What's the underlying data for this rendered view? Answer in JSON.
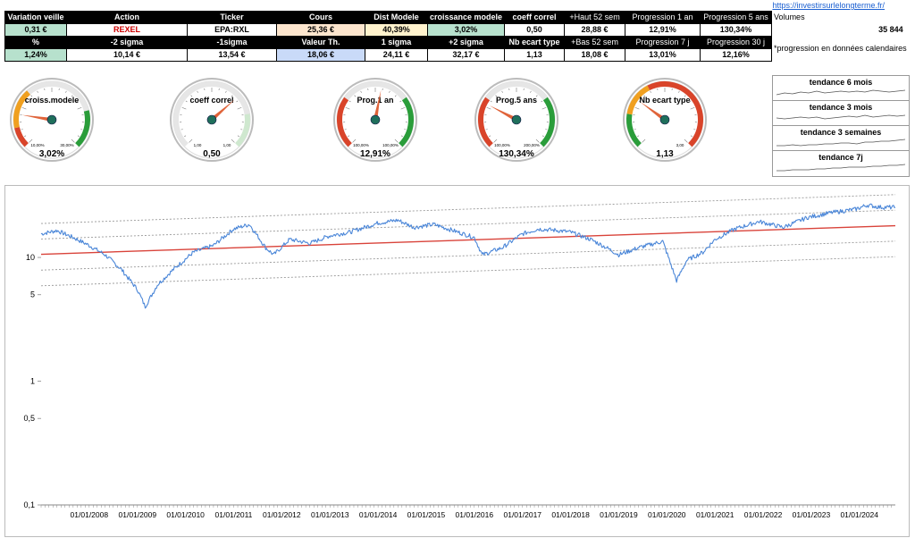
{
  "link": "https://investirsurlelongterme.fr/",
  "table": {
    "row1_headers": [
      {
        "name": "variation-veille-header",
        "text": "Variation veille",
        "cls": "h"
      },
      {
        "name": "action-header",
        "text": "Action",
        "cls": "h"
      },
      {
        "name": "ticker-header",
        "text": "Ticker",
        "cls": "h"
      },
      {
        "name": "cours-header",
        "text": "Cours",
        "cls": "h"
      },
      {
        "name": "dist-modele-header",
        "text": "Dist Modele",
        "cls": "h"
      },
      {
        "name": "croissance-modele-header",
        "text": "croissance modele",
        "cls": "h"
      },
      {
        "name": "coeff-correl-header",
        "text": "coeff correl",
        "cls": "h"
      },
      {
        "name": "haut-52-header",
        "text": "+Haut 52 sem",
        "cls": "hn"
      },
      {
        "name": "progression-1an-header",
        "text": "Progression 1 an",
        "cls": "hn"
      },
      {
        "name": "progression-5ans-header",
        "text": "Progression 5 ans",
        "cls": "hn"
      },
      {
        "name": "volumes-header",
        "text": "Volumes",
        "cls": "plain"
      }
    ],
    "row1_values": [
      {
        "name": "variation-veille-value",
        "text": "0,31 €",
        "cls": "v green"
      },
      {
        "name": "action-value",
        "text": "REXEL",
        "cls": "v red"
      },
      {
        "name": "ticker-value",
        "text": "EPA:RXL",
        "cls": "v"
      },
      {
        "name": "cours-value",
        "text": "25,36 €",
        "cls": "v orange"
      },
      {
        "name": "dist-modele-value",
        "text": "40,39%",
        "cls": "v yellow"
      },
      {
        "name": "croissance-modele-value",
        "text": "3,02%",
        "cls": "v green"
      },
      {
        "name": "coeff-correl-value",
        "text": "0,50",
        "cls": "v"
      },
      {
        "name": "haut-52-value",
        "text": "28,88 €",
        "cls": "v"
      },
      {
        "name": "progression-1an-value",
        "text": "12,91%",
        "cls": "v"
      },
      {
        "name": "progression-5ans-value",
        "text": "130,34%",
        "cls": "v"
      },
      {
        "name": "volumes-value",
        "text": "35 844",
        "cls": "rightplain"
      }
    ],
    "row2_headers": [
      {
        "name": "percent-header",
        "text": "%",
        "cls": "h"
      },
      {
        "name": "minus-2-sigma-header",
        "text": "-2 sigma",
        "cls": "h"
      },
      {
        "name": "minus-1-sigma-header",
        "text": "-1sigma",
        "cls": "h"
      },
      {
        "name": "valeur-th-header",
        "text": "Valeur Th.",
        "cls": "h"
      },
      {
        "name": "plus-1-sigma-header",
        "text": "1 sigma",
        "cls": "h"
      },
      {
        "name": "plus-2-sigma-header",
        "text": "+2 sigma",
        "cls": "h"
      },
      {
        "name": "nb-ecart-type-header",
        "text": "Nb ecart type",
        "cls": "h"
      },
      {
        "name": "bas-52-header",
        "text": "+Bas 52 sem",
        "cls": "hn"
      },
      {
        "name": "progression-7j-header",
        "text": "Progression 7 j",
        "cls": "hn"
      },
      {
        "name": "progression-30j-header",
        "text": "Progression 30 j",
        "cls": "hn"
      }
    ],
    "row2_values": [
      {
        "name": "percent-value",
        "text": "1,24%",
        "cls": "v green"
      },
      {
        "name": "minus-2-sigma-value",
        "text": "10,14 €",
        "cls": "v"
      },
      {
        "name": "minus-1-sigma-value",
        "text": "13,54 €",
        "cls": "v"
      },
      {
        "name": "valeur-th-value",
        "text": "18,06 €",
        "cls": "v blue"
      },
      {
        "name": "plus-1-sigma-value",
        "text": "24,11 €",
        "cls": "v"
      },
      {
        "name": "plus-2-sigma-value",
        "text": "32,17 €",
        "cls": "v"
      },
      {
        "name": "nb-ecart-type-value",
        "text": "1,13",
        "cls": "v"
      },
      {
        "name": "bas-52-value",
        "text": "18,08 €",
        "cls": "v"
      },
      {
        "name": "progression-7j-value",
        "text": "13,01%",
        "cls": "v"
      },
      {
        "name": "progression-30j-value",
        "text": "12,16%",
        "cls": "v"
      }
    ],
    "footnote": "*progression en données calendaires"
  },
  "gauges": [
    {
      "name": "croissance-modele-gauge",
      "title": "croiss.modele",
      "value_text": "3,02%",
      "min_label": "10,00%",
      "max_label": "30,00%",
      "needle": 0.2,
      "zones": "croiss"
    },
    {
      "name": "coeff-correl-gauge",
      "title": "coeff correl",
      "value_text": "0,50",
      "min_label": "1,00",
      "max_label": "1,00",
      "needle": 0.68,
      "zones": "correl"
    },
    {
      "name": "progression-1an-gauge",
      "title": "Prog.1 an",
      "value_text": "12,91%",
      "min_label": "100,00%",
      "max_label": "100,00%",
      "needle": 0.54,
      "zones": "prog"
    },
    {
      "name": "progression-5ans-gauge",
      "title": "Prog.5 ans",
      "value_text": "130,34%",
      "min_label": "100,00%",
      "max_label": "200,00%",
      "needle": 0.27,
      "zones": "prog"
    },
    {
      "name": "nb-ecart-type-gauge",
      "title": "Nb ecart type",
      "value_text": "1,13",
      "min_label": "",
      "max_label": "3,00",
      "needle": 0.3,
      "zones": "ecart"
    }
  ],
  "trends": [
    {
      "name": "tendance-6-mois",
      "label": "tendance 6 mois"
    },
    {
      "name": "tendance-3-mois",
      "label": "tendance 3 mois"
    },
    {
      "name": "tendance-3-semaines",
      "label": "tendance 3 semaines"
    },
    {
      "name": "tendance-7j",
      "label": "tendance 7j"
    }
  ],
  "colors": {
    "price": "#4a86d8",
    "model": "#d9433a",
    "band": "#999999",
    "gauge_green": "#2a9d3a",
    "gauge_red": "#d9442a",
    "gauge_orange": "#f0a020"
  },
  "chart_data": {
    "type": "line",
    "yscale": "log",
    "ylim": [
      0.1,
      30
    ],
    "y_ticks": [
      "0,1",
      "0,5",
      "1",
      "5",
      "10"
    ],
    "y_tick_values": [
      0.1,
      0.5,
      1,
      5,
      10
    ],
    "x_ticks": [
      "01/01/2008",
      "01/01/2009",
      "01/01/2010",
      "01/01/2011",
      "01/01/2012",
      "01/01/2013",
      "01/01/2014",
      "01/01/2015",
      "01/01/2016",
      "01/01/2017",
      "01/01/2018",
      "01/01/2019",
      "01/01/2020",
      "01/01/2021",
      "01/01/2022",
      "01/01/2023",
      "01/01/2024"
    ],
    "xlim": [
      "2007-01-01",
      "2024-09-30"
    ],
    "series": [
      {
        "role": "price",
        "x": [
          "2007-01-01",
          "2007-05-01",
          "2007-09-01",
          "2008-01-01",
          "2008-05-01",
          "2008-09-01",
          "2009-01-01",
          "2009-03-01",
          "2009-06-01",
          "2009-10-01",
          "2010-03-01",
          "2010-08-01",
          "2011-01-01",
          "2011-05-01",
          "2011-09-01",
          "2011-11-01",
          "2012-03-01",
          "2012-08-01",
          "2013-01-01",
          "2013-06-01",
          "2014-01-01",
          "2014-06-01",
          "2014-10-01",
          "2015-03-01",
          "2015-09-01",
          "2016-01-01",
          "2016-03-01",
          "2016-08-01",
          "2017-01-01",
          "2017-05-01",
          "2017-10-01",
          "2018-01-01",
          "2018-06-01",
          "2018-10-01",
          "2019-01-01",
          "2019-06-01",
          "2019-12-01",
          "2020-03-15",
          "2020-06-01",
          "2020-10-01",
          "2021-01-01",
          "2021-06-01",
          "2021-12-01",
          "2022-06-01",
          "2022-12-01",
          "2023-06-01",
          "2023-12-01",
          "2024-03-01",
          "2024-06-01",
          "2024-09-30"
        ],
        "y": [
          15.5,
          16.5,
          14.5,
          12.5,
          10.5,
          8.0,
          5.5,
          4.0,
          6.0,
          8.0,
          11.0,
          12.5,
          17.0,
          18.5,
          12.0,
          10.5,
          14.0,
          13.0,
          15.0,
          16.0,
          19.0,
          20.0,
          17.5,
          18.5,
          16.0,
          14.5,
          10.5,
          12.0,
          15.5,
          17.0,
          16.5,
          16.0,
          14.0,
          12.0,
          10.5,
          12.0,
          13.5,
          6.5,
          9.5,
          11.0,
          14.0,
          17.0,
          19.5,
          17.5,
          21.0,
          23.0,
          24.5,
          26.5,
          25.5,
          25.36
        ]
      },
      {
        "role": "model",
        "x": [
          "2007-01-01",
          "2024-09-30"
        ],
        "y": [
          10.6,
          18.06
        ]
      },
      {
        "role": "band",
        "x": [
          "2007-01-01",
          "2024-09-30"
        ],
        "y": [
          5.9,
          10.14
        ]
      },
      {
        "role": "band",
        "x": [
          "2007-01-01",
          "2024-09-30"
        ],
        "y": [
          7.9,
          13.54
        ]
      },
      {
        "role": "band",
        "x": [
          "2007-01-01",
          "2024-09-30"
        ],
        "y": [
          14.1,
          24.11
        ]
      },
      {
        "role": "band",
        "x": [
          "2007-01-01",
          "2024-09-30"
        ],
        "y": [
          18.8,
          32.17
        ]
      }
    ]
  }
}
